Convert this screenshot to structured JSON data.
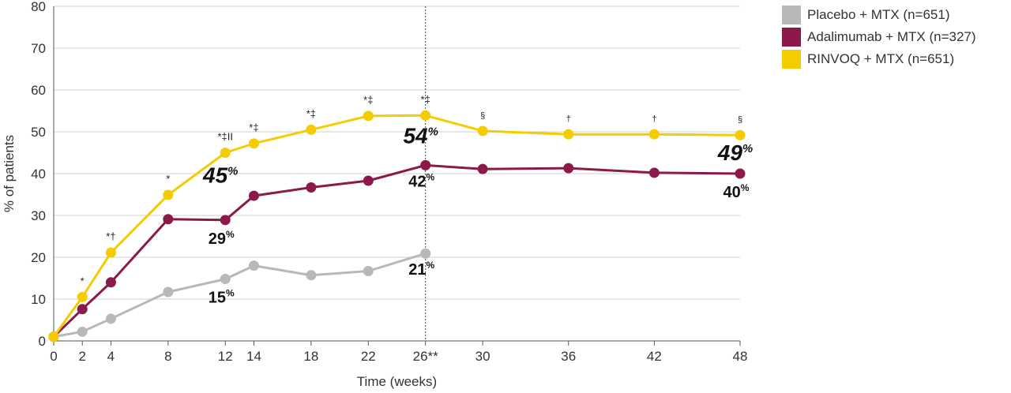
{
  "chart_data": {
    "type": "line",
    "xlabel": "Time (weeks)",
    "ylabel": "% of patients",
    "ylim": [
      0,
      80
    ],
    "yticks": [
      0,
      10,
      20,
      30,
      40,
      50,
      60,
      70,
      80
    ],
    "xticks": [
      {
        "value": 0,
        "label": "0"
      },
      {
        "value": 2,
        "label": "2"
      },
      {
        "value": 4,
        "label": "4"
      },
      {
        "value": 8,
        "label": "8"
      },
      {
        "value": 12,
        "label": "12"
      },
      {
        "value": 14,
        "label": "14"
      },
      {
        "value": 18,
        "label": "18"
      },
      {
        "value": 22,
        "label": "22"
      },
      {
        "value": 26,
        "label": "26**"
      },
      {
        "value": 30,
        "label": "30"
      },
      {
        "value": 36,
        "label": "36"
      },
      {
        "value": 42,
        "label": "42"
      },
      {
        "value": 48,
        "label": "48"
      }
    ],
    "grid": "horizontal",
    "reference_line": {
      "x": 26,
      "style": "dotted"
    },
    "legend_position": "top-right",
    "series": [
      {
        "name": "Placebo + MTX (n=651)",
        "color": "#b8b8b8",
        "x": [
          0,
          2,
          4,
          8,
          12,
          14,
          18,
          22,
          26
        ],
        "values": [
          1,
          2.2,
          5.3,
          11.7,
          14.8,
          18.0,
          15.7,
          16.7,
          20.9
        ]
      },
      {
        "name": "Adalimumab + MTX (n=327)",
        "color": "#8b1a4a",
        "x": [
          0,
          2,
          4,
          8,
          12,
          14,
          18,
          22,
          26,
          30,
          36,
          42,
          48
        ],
        "values": [
          1,
          7.6,
          14.0,
          29.1,
          28.9,
          34.7,
          36.7,
          38.3,
          42.0,
          41.1,
          41.3,
          40.2,
          40.0
        ]
      },
      {
        "name": "RINVOQ + MTX (n=651)",
        "color": "#f5cc00",
        "x": [
          0,
          2,
          4,
          8,
          12,
          14,
          18,
          22,
          26,
          30,
          36,
          42,
          48
        ],
        "values": [
          1,
          10.5,
          21.1,
          34.9,
          45.0,
          47.2,
          50.5,
          53.8,
          53.9,
          50.2,
          49.4,
          49.4,
          49.2
        ]
      }
    ],
    "significance_marks": [
      {
        "x": 2,
        "text": "*"
      },
      {
        "x": 4,
        "text": "*†"
      },
      {
        "x": 8,
        "text": "*"
      },
      {
        "x": 12,
        "text": "*‡II"
      },
      {
        "x": 14,
        "text": "*‡"
      },
      {
        "x": 18,
        "text": "*‡"
      },
      {
        "x": 22,
        "text": "*‡"
      },
      {
        "x": 26,
        "text": "*‡"
      },
      {
        "x": 30,
        "text": "§"
      },
      {
        "x": 36,
        "text": "†"
      },
      {
        "x": 42,
        "text": "†"
      },
      {
        "x": 48,
        "text": "§"
      }
    ],
    "value_callouts": [
      {
        "series": "RINVOQ + MTX (n=651)",
        "x": 12,
        "num": "45",
        "unit": "%",
        "style": "big"
      },
      {
        "series": "RINVOQ + MTX (n=651)",
        "x": 26,
        "num": "54",
        "unit": "%",
        "style": "big"
      },
      {
        "series": "RINVOQ + MTX (n=651)",
        "x": 48,
        "num": "49",
        "unit": "%",
        "style": "big"
      },
      {
        "series": "Adalimumab + MTX (n=327)",
        "x": 12,
        "num": "29",
        "unit": "%",
        "style": "normal"
      },
      {
        "series": "Adalimumab + MTX (n=327)",
        "x": 26,
        "num": "42",
        "unit": "%",
        "style": "normal"
      },
      {
        "series": "Adalimumab + MTX (n=327)",
        "x": 48,
        "num": "40",
        "unit": "%",
        "style": "normal"
      },
      {
        "series": "Placebo + MTX (n=651)",
        "x": 12,
        "num": "15",
        "unit": "%",
        "style": "normal"
      },
      {
        "series": "Placebo + MTX (n=651)",
        "x": 26,
        "num": "21",
        "unit": "%",
        "style": "normal"
      }
    ]
  }
}
